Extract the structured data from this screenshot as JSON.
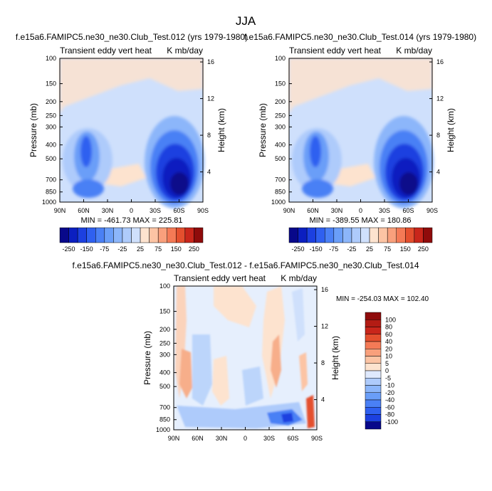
{
  "page_title": "JJA",
  "colors": {
    "neg": [
      "#08088a",
      "#0b1fc0",
      "#1c40e0",
      "#2f60f0",
      "#4a80f5",
      "#6a9ef8",
      "#8cb6fa",
      "#aecbfb",
      "#cfe0fc"
    ],
    "pos": [
      "#fde3cf",
      "#fcc4a4",
      "#f9a07c",
      "#f47a56",
      "#e44f2e",
      "#c9261b",
      "#8f0b0b"
    ]
  },
  "panels": [
    {
      "title": "f.e15a6.FAMIPC5.ne30_ne30.Club_Test.012 (yrs 1979-1980)",
      "left_label": "Transient eddy vert heat",
      "right_label": "K mb/day",
      "minmax": "MIN = -461.73  MAX = 225.81"
    },
    {
      "title": "f.e15a6.FAMIPC5.ne30_ne30.Club_Test.014 (yrs 1979-1980)",
      "left_label": "Transient eddy vert heat",
      "right_label": "K mb/day",
      "minmax": "MIN = -389.55  MAX = 180.86"
    },
    {
      "title": "f.e15a6.FAMIPC5.ne30_ne30.Club_Test.012 - f.e15a6.FAMIPC5.ne30_ne30.Club_Test.014",
      "left_label": "Transient eddy vert heat",
      "right_label": "K mb/day",
      "minmax": "MIN = -254.03  MAX = 102.40"
    }
  ],
  "chart_data": [
    {
      "type": "heatmap",
      "title": "f.e15a6.FAMIPC5.ne30_ne30.Club_Test.012 (yrs 1979-1980)",
      "xlabel": "",
      "ylabel": "Pressure (mb)",
      "y2label": "Height (km)",
      "x_ticks": [
        "90N",
        "60N",
        "30N",
        "0",
        "30S",
        "60S",
        "90S"
      ],
      "y_ticks": [
        "100",
        "150",
        "200",
        "250",
        "300",
        "400",
        "500",
        "700",
        "850",
        "1000"
      ],
      "y2_ticks": [
        "4",
        "8",
        "12",
        "16"
      ],
      "x_range": [
        90,
        -90
      ],
      "y_range": [
        100,
        1000
      ],
      "y_scale": "log",
      "colorbar_labels": [
        "-250",
        "-150",
        "-75",
        "-25",
        "25",
        "75",
        "150",
        "250"
      ],
      "min": -461.73,
      "max": 225.81
    },
    {
      "type": "heatmap",
      "title": "f.e15a6.FAMIPC5.ne30_ne30.Club_Test.014 (yrs 1979-1980)",
      "xlabel": "",
      "ylabel": "Pressure (mb)",
      "y2label": "Height (km)",
      "x_ticks": [
        "90N",
        "60N",
        "30N",
        "0",
        "30S",
        "60S",
        "90S"
      ],
      "y_ticks": [
        "100",
        "150",
        "200",
        "250",
        "300",
        "400",
        "500",
        "700",
        "850",
        "1000"
      ],
      "y2_ticks": [
        "4",
        "8",
        "12",
        "16"
      ],
      "x_range": [
        90,
        -90
      ],
      "y_range": [
        100,
        1000
      ],
      "y_scale": "log",
      "colorbar_labels": [
        "-250",
        "-150",
        "-75",
        "-25",
        "25",
        "75",
        "150",
        "250"
      ],
      "min": -389.55,
      "max": 180.86
    },
    {
      "type": "heatmap",
      "title": "f.e15a6.FAMIPC5.ne30_ne30.Club_Test.012 - f.e15a6.FAMIPC5.ne30_ne30.Club_Test.014",
      "xlabel": "",
      "ylabel": "Pressure (mb)",
      "y2label": "Height (km)",
      "x_ticks": [
        "90N",
        "60N",
        "30N",
        "0",
        "30S",
        "60S",
        "90S"
      ],
      "y_ticks": [
        "100",
        "150",
        "200",
        "250",
        "300",
        "400",
        "500",
        "700",
        "850",
        "1000"
      ],
      "y2_ticks": [
        "4",
        "8",
        "12",
        "16"
      ],
      "x_range": [
        90,
        -90
      ],
      "y_range": [
        100,
        1000
      ],
      "y_scale": "log",
      "colorbar_labels": [
        "100",
        "80",
        "60",
        "40",
        "20",
        "10",
        "5",
        "0",
        "-5",
        "-10",
        "-20",
        "-40",
        "-60",
        "-80",
        "-100"
      ],
      "min": -254.03,
      "max": 102.4
    }
  ]
}
